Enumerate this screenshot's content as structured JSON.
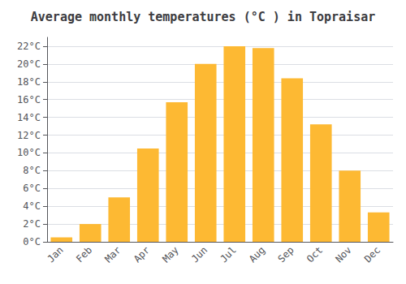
{
  "chart_data": {
    "type": "bar",
    "title": "Average monthly temperatures (°C ) in Topraisar",
    "categories": [
      "Jan",
      "Feb",
      "Mar",
      "Apr",
      "May",
      "Jun",
      "Jul",
      "Aug",
      "Sep",
      "Oct",
      "Nov",
      "Dec"
    ],
    "values": [
      0.5,
      2.0,
      5.0,
      10.5,
      15.7,
      20.0,
      22.0,
      21.8,
      18.4,
      13.2,
      8.0,
      3.3
    ],
    "color": "#FDB933",
    "ylim": [
      0,
      23
    ],
    "yticks": [
      {
        "value": 0,
        "label": "0°C"
      },
      {
        "value": 2,
        "label": "2°C"
      },
      {
        "value": 4,
        "label": "4°C"
      },
      {
        "value": 6,
        "label": "6°C"
      },
      {
        "value": 8,
        "label": "8°C"
      },
      {
        "value": 10,
        "label": "10°C"
      },
      {
        "value": 12,
        "label": "12°C"
      },
      {
        "value": 14,
        "label": "14°C"
      },
      {
        "value": 16,
        "label": "16°C"
      },
      {
        "value": 18,
        "label": "18°C"
      },
      {
        "value": 20,
        "label": "20°C"
      },
      {
        "value": 22,
        "label": "22°C"
      }
    ],
    "grid": true
  }
}
